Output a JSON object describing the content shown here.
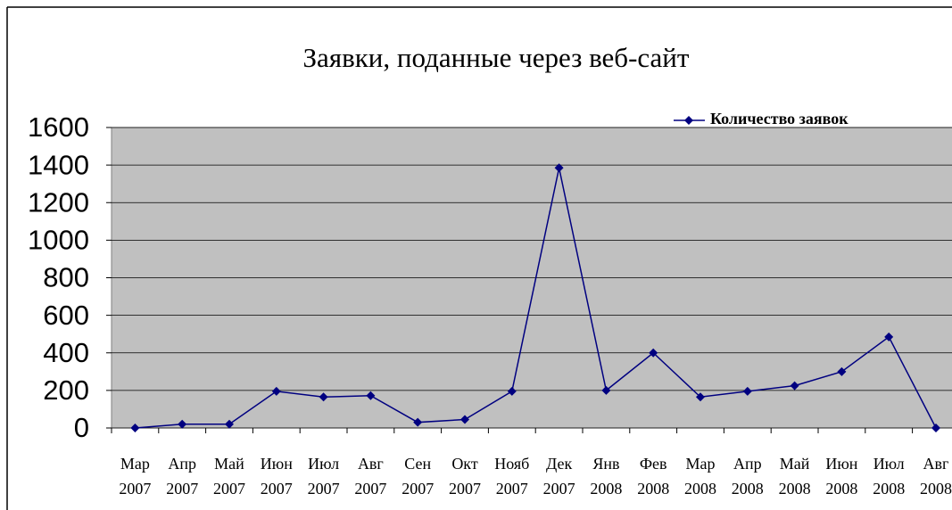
{
  "chart_data": {
    "type": "line",
    "title": "Заявки, поданные через веб-сайт",
    "categories": [
      "Мар 2007",
      "Апр 2007",
      "Май 2007",
      "Июн 2007",
      "Июл 2007",
      "Авг 2007",
      "Сен 2007",
      "Окт 2007",
      "Нояб 2007",
      "Дек 2007",
      "Янв 2008",
      "Фев 2008",
      "Мар 2008",
      "Апр 2008",
      "Май 2008",
      "Июн 2008",
      "Июл 2008",
      "Авг 2008"
    ],
    "series": [
      {
        "name": "Количество заявок",
        "color": "#000080",
        "values": [
          0,
          20,
          20,
          195,
          165,
          172,
          30,
          45,
          195,
          1385,
          200,
          400,
          165,
          195,
          225,
          300,
          485,
          0
        ]
      }
    ],
    "ylim": [
      0,
      1600
    ],
    "yticks": [
      0,
      200,
      400,
      600,
      800,
      1000,
      1200,
      1400,
      1600
    ],
    "grid": true,
    "legend": "top-right",
    "background": "#c0c0c0"
  }
}
